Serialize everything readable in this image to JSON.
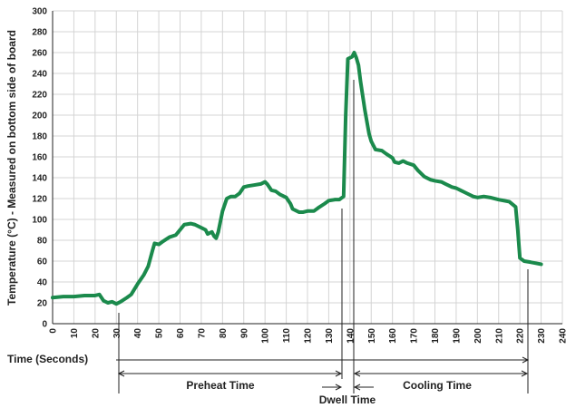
{
  "chart_data": {
    "type": "line",
    "ylabel": "Temperature (°C) - Measured on bottom side of board",
    "xlabel": "Time (Seconds)",
    "annotations": [
      "Preheat Time",
      "Dwell Time",
      "Cooling Time"
    ],
    "xlim": [
      0,
      240
    ],
    "xticks": [
      0,
      10,
      20,
      30,
      40,
      50,
      60,
      70,
      80,
      90,
      100,
      110,
      120,
      130,
      140,
      150,
      160,
      170,
      180,
      190,
      200,
      210,
      220,
      230,
      240
    ],
    "ylim": [
      0,
      300
    ],
    "yticks": [
      0,
      20,
      40,
      60,
      80,
      100,
      120,
      140,
      160,
      180,
      200,
      220,
      240,
      260,
      280,
      300
    ],
    "grid": true,
    "series": [
      {
        "color": "#1b8a4c",
        "x": [
          0,
          5,
          10,
          15,
          20,
          22,
          24,
          26,
          28,
          30,
          32,
          35,
          37,
          40,
          43,
          45,
          47,
          48,
          50,
          52,
          55,
          58,
          60,
          62,
          65,
          67,
          70,
          72,
          73,
          75,
          76,
          77,
          78,
          80,
          82,
          84,
          86,
          88,
          90,
          92,
          95,
          98,
          100,
          101,
          103,
          105,
          107,
          110,
          112,
          113,
          116,
          118,
          120,
          123,
          125,
          128,
          130,
          133,
          135,
          137,
          138,
          139,
          140,
          141,
          142,
          143,
          144,
          145,
          147,
          149,
          150,
          152,
          155,
          157,
          160,
          161,
          163,
          165,
          167,
          170,
          172,
          175,
          178,
          180,
          183,
          185,
          188,
          190,
          192,
          195,
          198,
          200,
          203,
          206,
          210,
          215,
          218,
          219,
          220,
          222,
          225,
          230
        ],
        "values": [
          25,
          26,
          26,
          27,
          27,
          28,
          22,
          20,
          21,
          19,
          21,
          25,
          28,
          38,
          47,
          55,
          70,
          77,
          76,
          79,
          83,
          85,
          90,
          95,
          96,
          95,
          92,
          90,
          86,
          88,
          84,
          82,
          88,
          108,
          120,
          122,
          122,
          125,
          131,
          132,
          133,
          134,
          136,
          134,
          128,
          127,
          124,
          121,
          115,
          110,
          107,
          107,
          108,
          108,
          111,
          115,
          118,
          119,
          119,
          122,
          200,
          254,
          255,
          256,
          260,
          255,
          248,
          232,
          205,
          182,
          175,
          167,
          166,
          163,
          159,
          155,
          154,
          156,
          154,
          152,
          147,
          141,
          138,
          137,
          136,
          134,
          131,
          130,
          128,
          125,
          122,
          121,
          122,
          121,
          119,
          117,
          112,
          90,
          63,
          60,
          59,
          57
        ]
      }
    ]
  }
}
